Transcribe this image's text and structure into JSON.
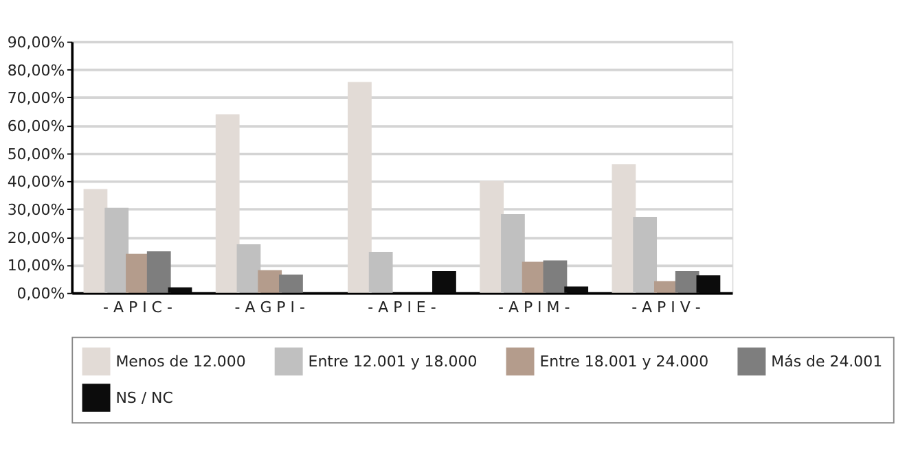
{
  "chart_data": {
    "type": "bar",
    "categories": [
      "- A P I C -",
      "- A G P I -",
      "- A P I E -",
      "- A P I M -",
      "- A P I V -"
    ],
    "series": [
      {
        "name": "Menos de 12.000",
        "color": "#e2dbd6",
        "values": [
          37.2,
          64.0,
          75.5,
          40.1,
          46.1
        ]
      },
      {
        "name": "Entre 12.001 y 18.000",
        "color": "#c0c0c0",
        "values": [
          30.5,
          17.4,
          14.7,
          28.2,
          27.2
        ]
      },
      {
        "name": "Entre 18.001 y 24.000",
        "color": "#b49c8c",
        "values": [
          14.0,
          8.1,
          null,
          11.1,
          4.2
        ]
      },
      {
        "name": "Más de 24.001",
        "color": "#7e7e7e",
        "values": [
          14.9,
          6.5,
          null,
          11.6,
          7.8
        ]
      },
      {
        "name": "NS / NC",
        "color": "#0c0c0c",
        "values": [
          2.0,
          null,
          7.8,
          2.3,
          6.3
        ]
      }
    ],
    "ylim": [
      0,
      90
    ],
    "yticks": [
      {
        "value": 0,
        "label": "0,00%"
      },
      {
        "value": 10,
        "label": "10,00%"
      },
      {
        "value": 20,
        "label": "20,00%"
      },
      {
        "value": 30,
        "label": "30,00%"
      },
      {
        "value": 40,
        "label": "40,00%"
      },
      {
        "value": 50,
        "label": "50,00%"
      },
      {
        "value": 60,
        "label": "60,00%"
      },
      {
        "value": 70,
        "label": "70,00%"
      },
      {
        "value": 80,
        "label": "80,00%"
      },
      {
        "value": 90,
        "label": "90,00%"
      }
    ],
    "grid": "y",
    "legend": "bottom"
  }
}
